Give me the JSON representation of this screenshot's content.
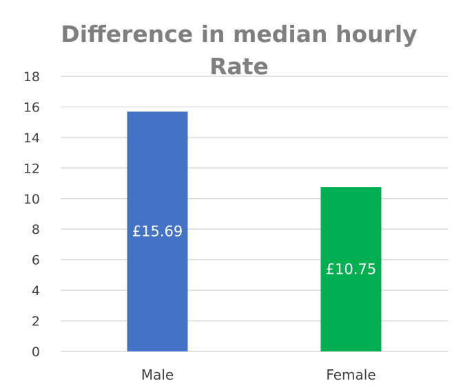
{
  "chart_data": {
    "type": "bar",
    "title_lines": [
      "Difference in median hourly",
      "Rate"
    ],
    "categories": [
      "Male",
      "Female"
    ],
    "values": [
      15.69,
      10.75
    ],
    "data_labels": [
      "£15.69",
      "£10.75"
    ],
    "bar_colors": [
      "#4472c4",
      "#00b050"
    ],
    "ylim": [
      0,
      18
    ],
    "yticks": [
      0,
      2,
      4,
      6,
      8,
      10,
      12,
      14,
      16,
      18
    ],
    "grid": true,
    "legend": "none"
  }
}
